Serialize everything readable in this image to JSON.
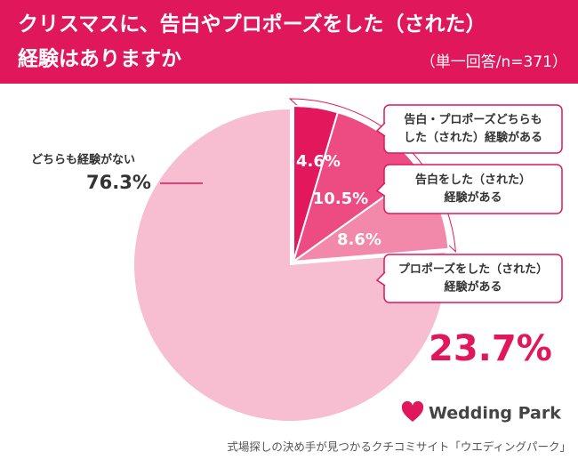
{
  "chart_data": {
    "type": "pie",
    "title": [
      "クリスマスに、告白やプロポーズをした（された）",
      "経験はありますか"
    ],
    "subtitle": "（単一回答/n=371）",
    "categories": [
      [
        "告白・プロポーズどちらも",
        "した（された）経験がある"
      ],
      [
        "告白をした（された）",
        "経験がある"
      ],
      [
        "プロポーズをした（された）",
        "経験がある"
      ],
      [
        "どちらも経験がない"
      ]
    ],
    "values": [
      4.6,
      10.5,
      8.6,
      76.3
    ],
    "value_labels": [
      "4.6%",
      "10.5%",
      "8.6%",
      "76.3%"
    ],
    "colors": [
      "#e2175c",
      "#ec4c82",
      "#f288aa",
      "#f7bdd0"
    ],
    "total": 23.7,
    "total_label": "23.7%",
    "brand": "Wedding Park",
    "footer": "式場探しの決め手が見つかるクチコミサイト「ウエディングパーク」"
  }
}
